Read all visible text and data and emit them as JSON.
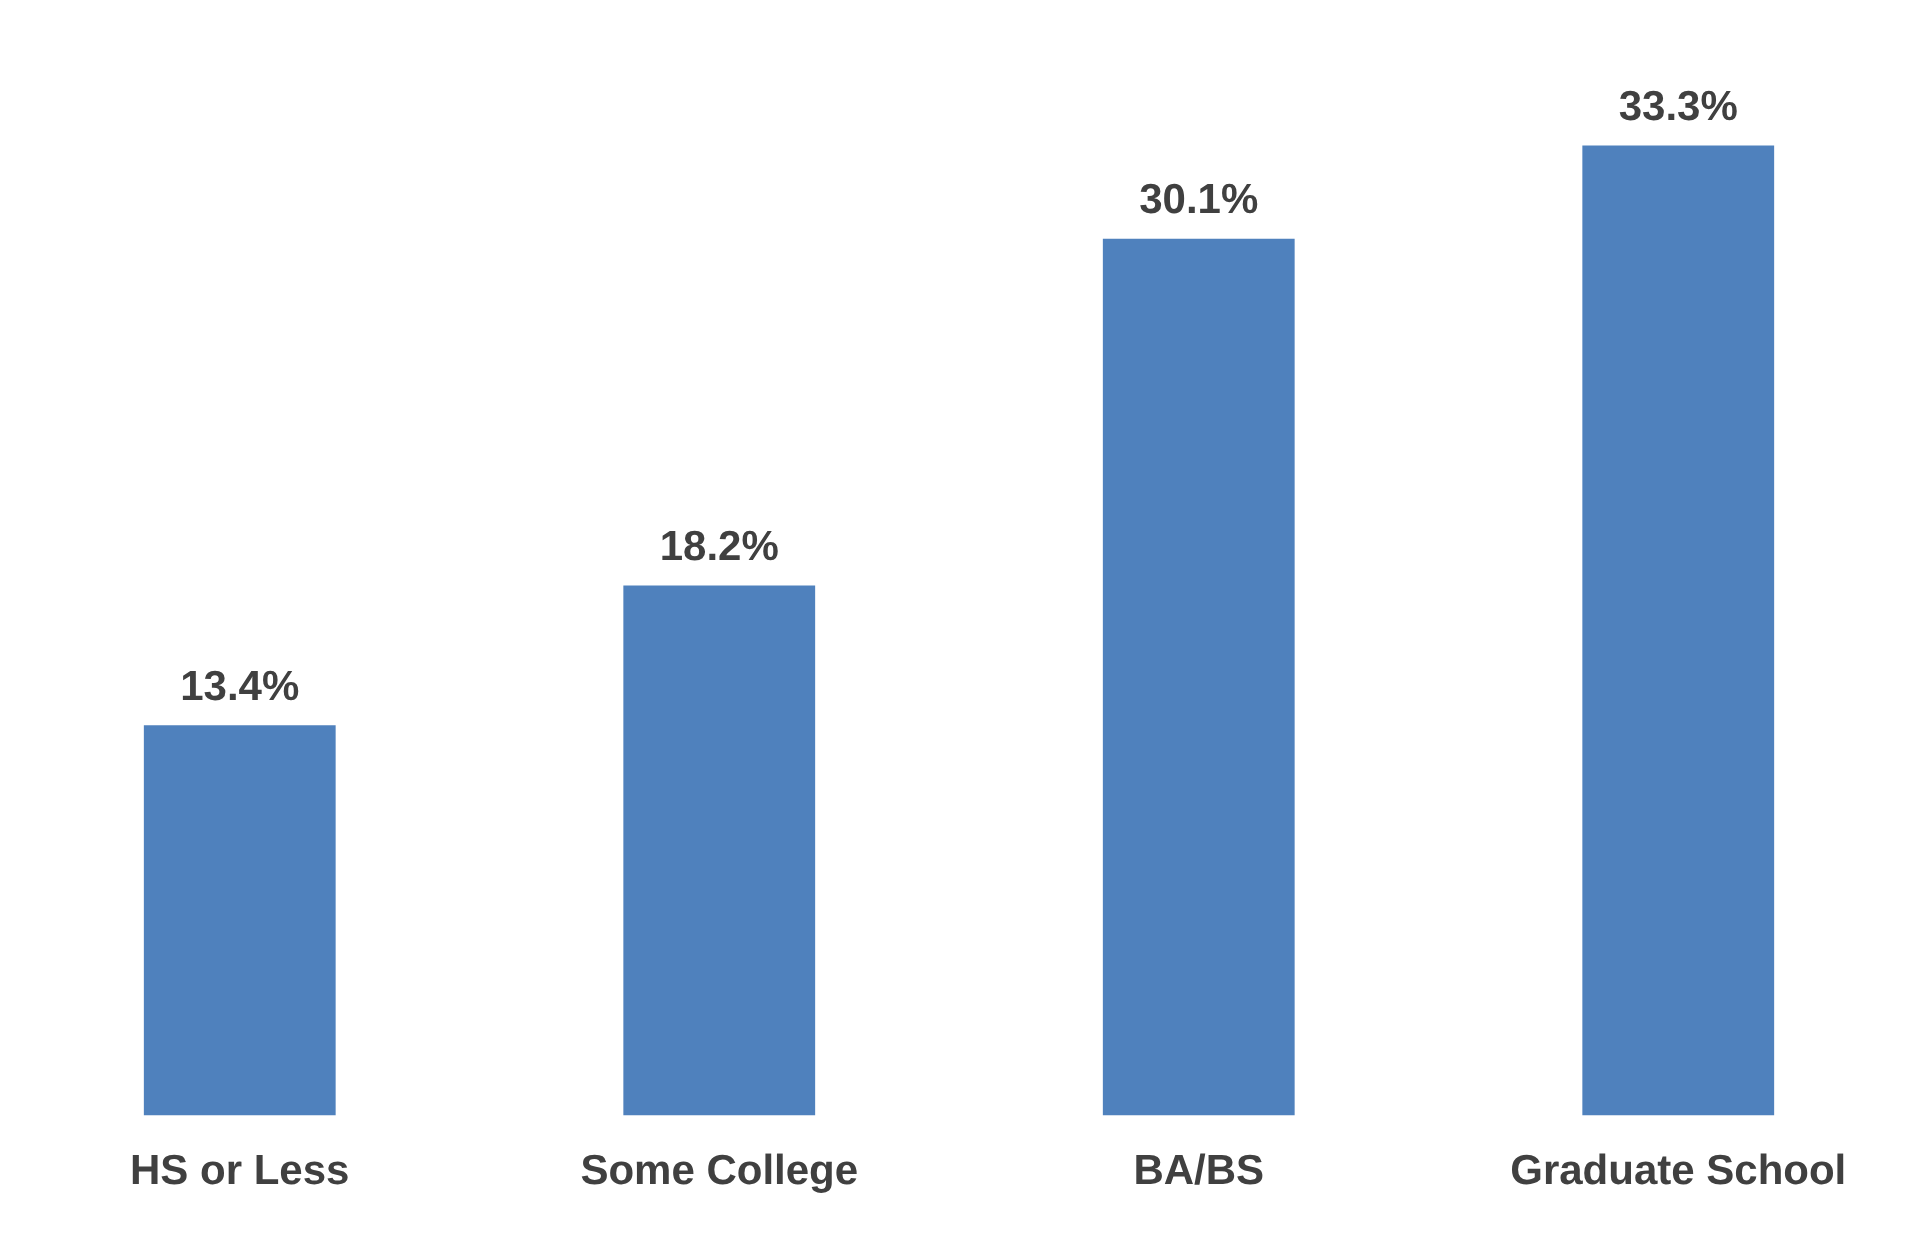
{
  "chart_data": {
    "type": "bar",
    "categories": [
      "HS or Less",
      "Some College",
      "BA/BS",
      "Graduate School"
    ],
    "values": [
      13.4,
      18.2,
      30.1,
      33.3
    ],
    "value_labels": [
      "13.4%",
      "18.2%",
      "30.1%",
      "33.3%"
    ],
    "color": "#4f81bd",
    "grid": false,
    "legend": false
  }
}
